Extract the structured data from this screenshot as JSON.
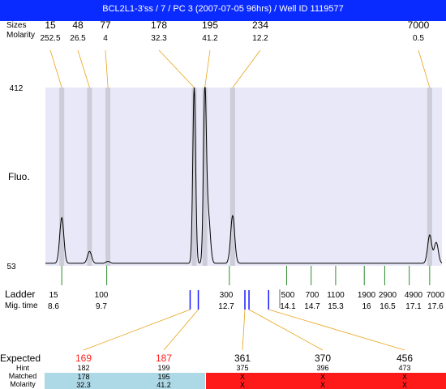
{
  "title": "BCL2L1-3'ss / 7 / PC 3 (2007-07-05 96hrs) / Well ID 1119577",
  "row_labels": {
    "sizes": "Sizes",
    "molarity": "Molarity",
    "fluo": "Fluo.",
    "ladder": "Ladder",
    "mig_time": "Mig. time",
    "expected": "Expected",
    "hint": "Hint",
    "matched": "Matched",
    "molarity_bottom": "Molarity"
  },
  "colors": {
    "title_bg": "#0a2bff",
    "plot_bg": "#e8e8f8",
    "band": "#c8c8d4",
    "connector": "#e8a317",
    "ladder_tick": "#2e8b2e",
    "marker": "#1a1aff",
    "expected_red": "#ff2020",
    "matched_ok": "#add8e6",
    "matched_fail": "#ff1a1a"
  },
  "chart_data": {
    "type": "line",
    "ylim": [
      53,
      412
    ],
    "y_ticks": [
      "412",
      "53"
    ],
    "ylabel": "Fluo.",
    "x_axis": "migration time",
    "peaks": [
      {
        "size": "15",
        "molarity": "252.5",
        "time": 8.6,
        "height": 150
      },
      {
        "size": "48",
        "molarity": "26.5",
        "time": 9.28,
        "height": 82
      },
      {
        "size": "77",
        "molarity": "4",
        "time": 9.73,
        "height": 62
      },
      {
        "size": "178",
        "molarity": "32.3",
        "time": 11.84,
        "height": 412
      },
      {
        "size": "195",
        "molarity": "41.2",
        "time": 12.1,
        "height": 392
      },
      {
        "size": "234",
        "molarity": "12.2",
        "time": 12.78,
        "height": 154
      },
      {
        "size": "7000",
        "molarity": "0.5",
        "time": 17.6,
        "height": 115
      }
    ],
    "extra_peaks": [
      {
        "time": 12.18,
        "height": 160
      },
      {
        "time": 17.76,
        "height": 100
      }
    ],
    "ladder": [
      {
        "size": "15",
        "time": "8.6",
        "t": 8.6
      },
      {
        "size": "100",
        "time": "9.7",
        "t": 9.7
      },
      {
        "size": "300",
        "time": "12.7",
        "t": 12.7
      },
      {
        "size": "500",
        "time": "14.1",
        "t": 14.1
      },
      {
        "size": "700",
        "time": "14.7",
        "t": 14.7
      },
      {
        "size": "1100",
        "time": "15.3",
        "t": 15.3
      },
      {
        "size": "1900",
        "time": "16",
        "t": 16
      },
      {
        "size": "2900",
        "time": "16.5",
        "t": 16.5
      },
      {
        "size": "4900",
        "time": "17.1",
        "t": 17.1
      },
      {
        "size": "7000",
        "time": "17.6",
        "t": 17.6
      }
    ],
    "expected": [
      {
        "size": "169",
        "hint": "182",
        "matched": "178",
        "molarity": "32.3",
        "status": "matched",
        "highlight": true,
        "time": 11.74
      },
      {
        "size": "187",
        "hint": "199",
        "matched": "195",
        "molarity": "41.2",
        "status": "matched",
        "highlight": true,
        "time": 11.94
      },
      {
        "size": "361",
        "hint": "375",
        "matched": "X",
        "molarity": "X",
        "status": "unmatched",
        "highlight": false,
        "time": 13.08
      },
      {
        "size": "370",
        "hint": "396",
        "matched": "X",
        "molarity": "X",
        "status": "unmatched",
        "highlight": false,
        "time": 13.18
      },
      {
        "size": "456",
        "hint": "473",
        "matched": "X",
        "molarity": "X",
        "status": "unmatched",
        "highlight": false,
        "time": 13.66
      }
    ]
  }
}
